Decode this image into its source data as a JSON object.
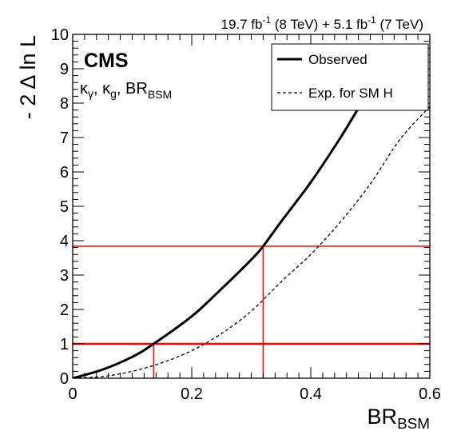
{
  "chart_data": {
    "type": "line",
    "title": "",
    "experiment_label": "CMS",
    "lumi_label": {
      "part1_pre": "19.7 fb",
      "part1_sup": "-1",
      "part1_post": " (8 TeV) +  5.1 fb",
      "part2_sup": "-1",
      "part2_post": " (7 TeV)"
    },
    "model_label": {
      "kappa_gamma_base": "κ",
      "kappa_gamma_sub": "γ",
      "sep1": ", ",
      "kappa_g_base": "κ",
      "kappa_g_sub": "g",
      "sep2": ", BR",
      "br_sub": "BSM"
    },
    "xlabel": {
      "base": "BR",
      "sub": "BSM"
    },
    "ylabel": "- 2 Δ ln L",
    "xlim": [
      0,
      0.6
    ],
    "ylim": [
      0,
      10
    ],
    "xticks": [
      "0",
      "0.2",
      "0.4",
      "0.6"
    ],
    "xtick_values": [
      0,
      0.2,
      0.4,
      0.6
    ],
    "yticks": [
      "0",
      "1",
      "2",
      "3",
      "4",
      "5",
      "6",
      "7",
      "8",
      "9",
      "10"
    ],
    "ytick_values": [
      0,
      1,
      2,
      3,
      4,
      5,
      6,
      7,
      8,
      9,
      10
    ],
    "legend_position": "top-right",
    "series": [
      {
        "name": "Observed",
        "style": "solid",
        "color": "#000000",
        "x": [
          0,
          0.05,
          0.1,
          0.136,
          0.2,
          0.25,
          0.3,
          0.32,
          0.35,
          0.4,
          0.45,
          0.485
        ],
        "y": [
          0,
          0.25,
          0.62,
          1.0,
          1.8,
          2.6,
          3.45,
          3.84,
          4.55,
          5.7,
          7.0,
          8.0
        ]
      },
      {
        "name": "Exp. for SM H",
        "style": "dashed",
        "color": "#000000",
        "x": [
          0,
          0.05,
          0.1,
          0.15,
          0.2,
          0.25,
          0.3,
          0.35,
          0.4,
          0.45,
          0.5,
          0.55,
          0.6
        ],
        "y": [
          0,
          0.05,
          0.2,
          0.45,
          0.8,
          1.3,
          1.95,
          2.8,
          3.6,
          4.55,
          5.65,
          6.95,
          7.9
        ]
      }
    ],
    "reference_lines": [
      {
        "type": "horizontal",
        "y": 1,
        "color": "#ff0000"
      },
      {
        "type": "horizontal",
        "y": 3.84,
        "color": "#ff0000"
      },
      {
        "type": "vertical",
        "x": 0.136,
        "y_to": 1,
        "color": "#ff0000"
      },
      {
        "type": "vertical",
        "x": 0.32,
        "y_to": 3.84,
        "color": "#ff0000"
      }
    ]
  }
}
